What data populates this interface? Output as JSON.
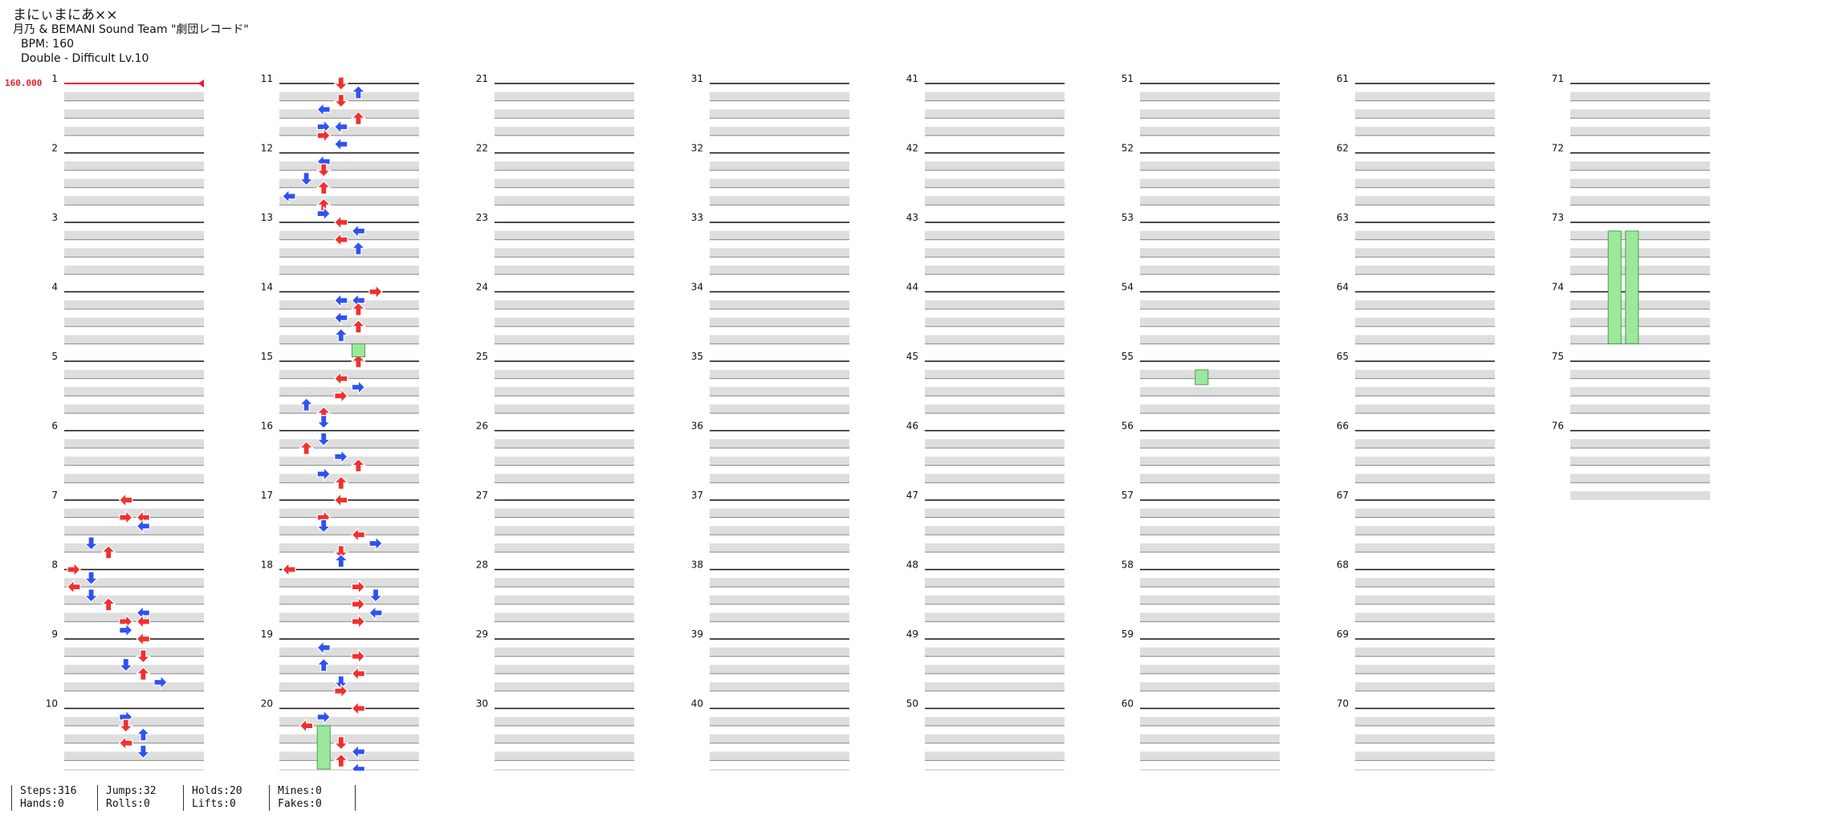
{
  "song": {
    "title": "まにぃまにあ××",
    "artist": "月乃 & BEMANI Sound Team \"劇団レコード\"",
    "bpm_line": "BPM: 160",
    "difficulty_line": "Double - Difficult Lv.10"
  },
  "bpm_change": {
    "label": "160.000",
    "color": "#e8202a"
  },
  "colors": {
    "red_arrow": "#f03030",
    "blue_arrow": "#2f52f0",
    "yellow_arrow": "#f7d84a",
    "hold": "#9ce89c",
    "lane_band": "#dedede"
  },
  "stats": [
    {
      "a": "Steps:316",
      "b": "Hands:0"
    },
    {
      "a": "Jumps:32",
      "b": "Rolls:0"
    },
    {
      "a": "Holds:20",
      "b": "Lifts:0"
    },
    {
      "a": "Mines:0",
      "b": "Fakes:0"
    }
  ],
  "measures": [
    {
      "n": "1",
      "notes": []
    },
    {
      "n": "2",
      "notes": []
    },
    {
      "n": "3",
      "notes": []
    },
    {
      "n": "4",
      "notes": []
    },
    {
      "n": "5",
      "notes": []
    },
    {
      "n": "6",
      "notes": []
    },
    {
      "n": "7",
      "notes": [
        [
          0,
          3,
          "L"
        ],
        [
          2,
          3,
          "R"
        ],
        [
          2,
          4,
          "L"
        ],
        [
          3,
          4,
          "L"
        ],
        [
          5,
          1,
          "D"
        ],
        [
          6,
          2,
          "U"
        ]
      ]
    },
    {
      "n": "8",
      "notes": [
        [
          0,
          0,
          "R"
        ],
        [
          1,
          1,
          "D"
        ],
        [
          2,
          0,
          "L"
        ],
        [
          3,
          1,
          "D"
        ],
        [
          4,
          2,
          "U"
        ],
        [
          5,
          4,
          "L"
        ],
        [
          6,
          3,
          "R"
        ],
        [
          6,
          4,
          "L"
        ],
        [
          7,
          3,
          "R"
        ]
      ]
    },
    {
      "n": "9",
      "notes": [
        [
          0,
          4,
          "L"
        ],
        [
          2,
          4,
          "D"
        ],
        [
          3,
          3,
          "D"
        ],
        [
          4,
          4,
          "U"
        ],
        [
          5,
          5,
          "R"
        ]
      ]
    },
    {
      "n": "10",
      "notes": [
        [
          1,
          3,
          "R"
        ],
        [
          2,
          3,
          "D"
        ],
        [
          3,
          4,
          "U"
        ],
        [
          4,
          3,
          "L"
        ],
        [
          5,
          4,
          "D"
        ]
      ]
    },
    {
      "n": "11",
      "notes": [
        [
          0,
          3,
          "D"
        ],
        [
          1,
          4,
          "U"
        ],
        [
          2,
          3,
          "D"
        ],
        [
          3,
          2,
          "L"
        ],
        [
          4,
          4,
          "U"
        ],
        [
          5,
          2,
          "R"
        ],
        [
          5,
          3,
          "L"
        ],
        [
          6,
          2,
          "R"
        ],
        [
          7,
          3,
          "L"
        ]
      ]
    },
    {
      "n": "12",
      "notes": [
        [
          1,
          2,
          "L"
        ],
        [
          2,
          2,
          "D"
        ],
        [
          3,
          1,
          "D"
        ],
        [
          4,
          2,
          "U"
        ],
        [
          5,
          0,
          "L"
        ],
        [
          6,
          2,
          "U"
        ],
        [
          7,
          2,
          "R"
        ]
      ]
    },
    {
      "n": "13",
      "notes": [
        [
          0,
          3,
          "L"
        ],
        [
          1,
          4,
          "L"
        ],
        [
          2,
          3,
          "L"
        ],
        [
          3,
          4,
          "U"
        ]
      ]
    },
    {
      "n": "14",
      "notes": [
        [
          0,
          5,
          "R"
        ],
        [
          1,
          3,
          "L"
        ],
        [
          1,
          4,
          "L"
        ],
        [
          2,
          4,
          "U"
        ],
        [
          3,
          3,
          "L"
        ],
        [
          4,
          4,
          "U"
        ],
        [
          5,
          3,
          "U"
        ]
      ]
    },
    {
      "n": "15",
      "notes": [
        [
          0,
          4,
          "U"
        ],
        [
          2,
          3,
          "L"
        ],
        [
          3,
          4,
          "R"
        ],
        [
          4,
          3,
          "R"
        ],
        [
          5,
          1,
          "U"
        ],
        [
          6,
          2,
          "U"
        ],
        [
          7,
          2,
          "D"
        ]
      ]
    },
    {
      "n": "16",
      "notes": [
        [
          1,
          2,
          "D"
        ],
        [
          2,
          1,
          "U"
        ],
        [
          3,
          3,
          "R"
        ],
        [
          4,
          4,
          "U"
        ],
        [
          5,
          2,
          "R"
        ],
        [
          6,
          3,
          "U"
        ]
      ]
    },
    {
      "n": "17",
      "notes": [
        [
          0,
          3,
          "L"
        ],
        [
          2,
          2,
          "R"
        ],
        [
          3,
          2,
          "D"
        ],
        [
          4,
          4,
          "L"
        ],
        [
          5,
          5,
          "R"
        ],
        [
          6,
          3,
          "D"
        ],
        [
          7,
          3,
          "U"
        ]
      ]
    },
    {
      "n": "18",
      "notes": [
        [
          0,
          0,
          "L"
        ],
        [
          2,
          4,
          "R"
        ],
        [
          3,
          5,
          "D"
        ],
        [
          4,
          4,
          "R"
        ],
        [
          5,
          5,
          "L"
        ],
        [
          6,
          4,
          "R"
        ]
      ]
    },
    {
      "n": "19",
      "notes": [
        [
          1,
          2,
          "L"
        ],
        [
          2,
          4,
          "R"
        ],
        [
          3,
          2,
          "U"
        ],
        [
          4,
          4,
          "L"
        ],
        [
          5,
          3,
          "D"
        ],
        [
          6,
          3,
          "R"
        ]
      ]
    },
    {
      "n": "20",
      "notes": [
        [
          0,
          4,
          "L"
        ],
        [
          1,
          2,
          "R"
        ],
        [
          2,
          1,
          "L"
        ],
        [
          3,
          2,
          "U"
        ],
        [
          4,
          3,
          "D"
        ],
        [
          5,
          4,
          "L"
        ],
        [
          6,
          3,
          "U"
        ],
        [
          7,
          4,
          "L"
        ]
      ]
    }
  ]
}
